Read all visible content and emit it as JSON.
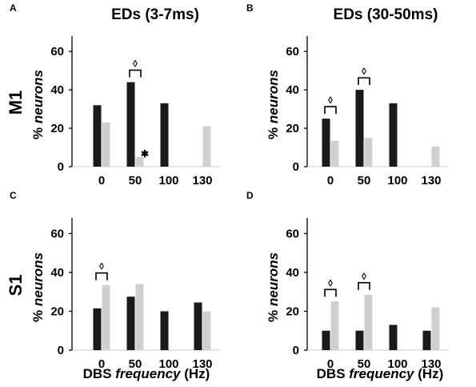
{
  "figure": {
    "col_titles": [
      "EDs (3-7ms)",
      "EDs (30-50ms)"
    ],
    "row_labels": [
      "M1",
      "S1"
    ],
    "xlabel_prefix": "DBS ",
    "xlabel_italic": "frequency",
    "xlabel_suffix": " (Hz)",
    "ylabel_prefix": "% ",
    "ylabel_italic": "neurons"
  },
  "colors": {
    "dark": "#1a1a1a",
    "light": "#cfcfcf",
    "axis": "#000000"
  },
  "chart_data": [
    {
      "panel": "A",
      "type": "bar",
      "categories": [
        "0",
        "50",
        "100",
        "130"
      ],
      "ylim": [
        0,
        68
      ],
      "yticks": [
        0,
        20,
        40,
        60
      ],
      "series": [
        {
          "values": [
            32,
            44,
            33,
            0
          ]
        },
        {
          "values": [
            23,
            5,
            0,
            21
          ]
        }
      ],
      "brackets": [
        {
          "category": 1,
          "symbol": "◊"
        }
      ],
      "stars": [
        {
          "category": 1,
          "series": 1,
          "symbol": "✱"
        }
      ]
    },
    {
      "panel": "B",
      "type": "bar",
      "categories": [
        "0",
        "50",
        "100",
        "130"
      ],
      "ylim": [
        0,
        68
      ],
      "yticks": [
        0,
        20,
        40,
        60
      ],
      "series": [
        {
          "values": [
            25,
            40,
            33,
            0
          ]
        },
        {
          "values": [
            13.5,
            15,
            0,
            10.5
          ]
        }
      ],
      "brackets": [
        {
          "category": 0,
          "symbol": "◊"
        },
        {
          "category": 1,
          "symbol": "◊"
        }
      ],
      "stars": []
    },
    {
      "panel": "C",
      "type": "bar",
      "categories": [
        "0",
        "50",
        "100",
        "130"
      ],
      "ylim": [
        0,
        68
      ],
      "yticks": [
        0,
        20,
        40,
        60
      ],
      "series": [
        {
          "values": [
            21.5,
            27.5,
            20,
            24.5
          ]
        },
        {
          "values": [
            33.5,
            34,
            0,
            20
          ]
        }
      ],
      "brackets": [
        {
          "category": 0,
          "symbol": "◊"
        }
      ],
      "stars": []
    },
    {
      "panel": "D",
      "type": "bar",
      "categories": [
        "0",
        "50",
        "100",
        "130"
      ],
      "ylim": [
        0,
        68
      ],
      "yticks": [
        0,
        20,
        40,
        60
      ],
      "series": [
        {
          "values": [
            10,
            10,
            13,
            10
          ]
        },
        {
          "values": [
            25,
            28.5,
            0,
            22
          ]
        }
      ],
      "brackets": [
        {
          "category": 0,
          "symbol": "◊"
        },
        {
          "category": 1,
          "symbol": "◊"
        }
      ],
      "stars": []
    }
  ]
}
